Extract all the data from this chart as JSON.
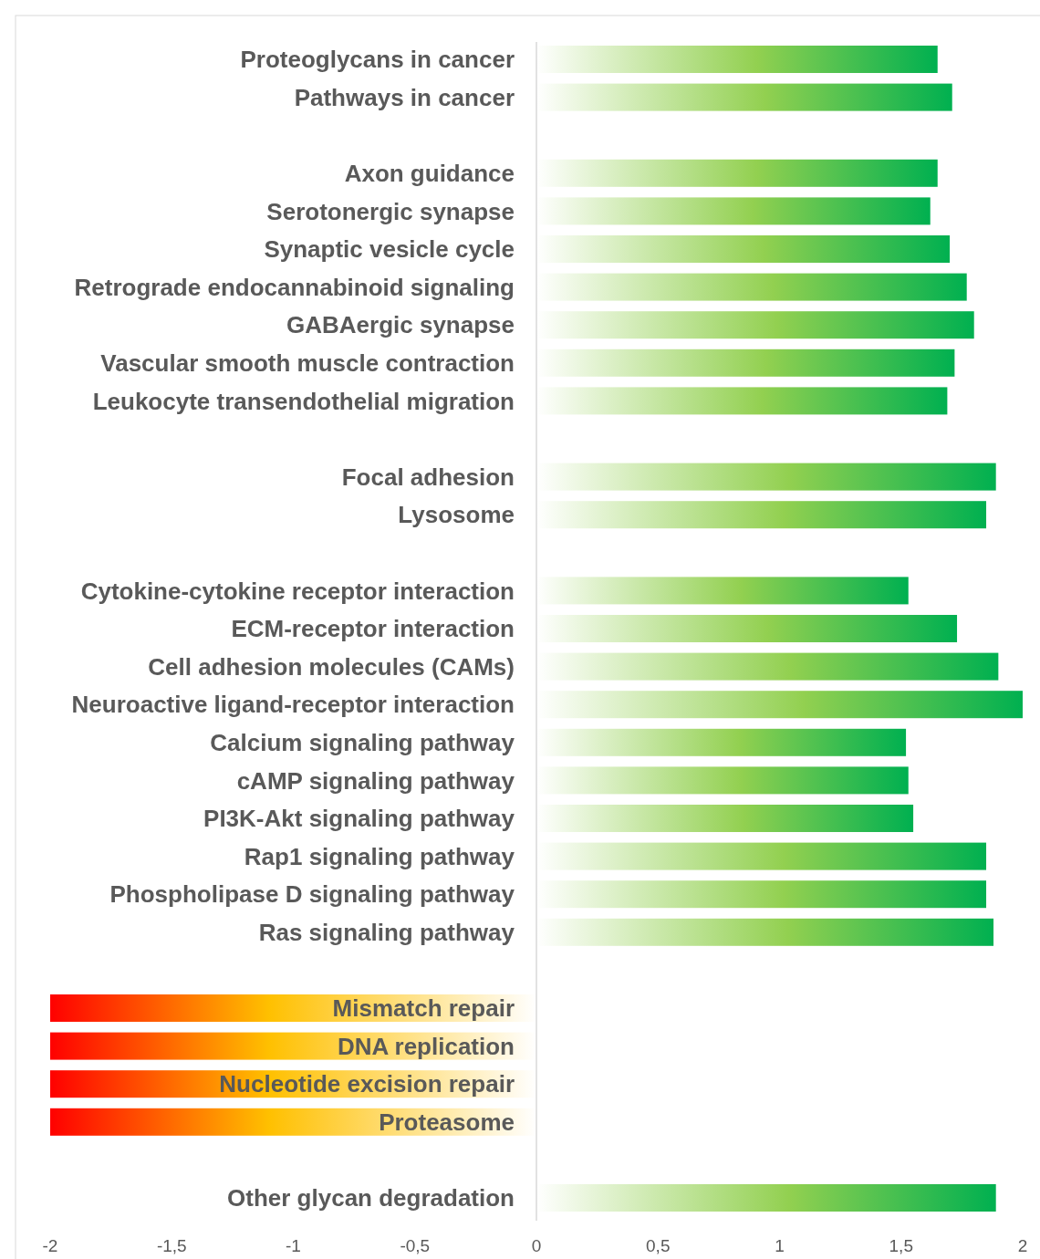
{
  "chart_data": {
    "type": "bar",
    "orientation": "horizontal",
    "categories": [
      "Proteoglycans in cancer",
      "Pathways in cancer",
      null,
      "Axon guidance",
      "Serotonergic synapse",
      "Synaptic vesicle cycle",
      "Retrograde endocannabinoid signaling",
      "GABAergic synapse",
      "Vascular smooth muscle contraction",
      "Leukocyte transendothelial migration",
      null,
      "Focal adhesion",
      "Lysosome",
      null,
      "Cytokine-cytokine receptor interaction",
      "ECM-receptor interaction",
      "Cell adhesion molecules (CAMs)",
      "Neuroactive ligand-receptor interaction",
      "Calcium signaling pathway",
      "cAMP signaling pathway",
      "PI3K-Akt signaling pathway",
      "Rap1 signaling pathway",
      "Phospholipase D signaling pathway",
      "Ras signaling pathway",
      null,
      "Mismatch repair",
      "DNA replication",
      "Nucleotide excision repair",
      "Proteasome",
      null,
      "Other glycan degradation"
    ],
    "values": [
      1.65,
      1.71,
      null,
      1.65,
      1.62,
      1.7,
      1.77,
      1.8,
      1.72,
      1.69,
      null,
      1.89,
      1.85,
      null,
      1.53,
      1.73,
      1.9,
      2,
      1.52,
      1.53,
      1.55,
      1.85,
      1.85,
      1.88,
      null,
      -2,
      -2,
      -2,
      -2,
      null,
      1.89
    ],
    "colors": [
      "#00b050",
      "#00b050",
      null,
      "#00b050",
      "#00b050",
      "#00b050",
      "#00b050",
      "#00b050",
      "#00b050",
      "#00b050",
      null,
      "#00b050",
      "#00b050",
      null,
      "#00b050",
      "#00b050",
      "#00b050",
      "#00b050",
      "#00b050",
      "#00b050",
      "#00b050",
      "#00b050",
      "#00b050",
      "#00b050",
      null,
      "#ff0000",
      "#ff0000",
      "#ff0000",
      "#ff0000",
      null,
      "#00b050"
    ],
    "xlim": [
      -2,
      2
    ],
    "xticks": [
      -2,
      {
        "value": -1.5,
        "label": "-1,5"
      },
      -1,
      {
        "value": -0.5,
        "label": "-0,5"
      },
      0,
      {
        "value": 0.5,
        "label": "0,5"
      },
      1,
      {
        "value": 1.5,
        "label": "1,5"
      },
      2
    ]
  }
}
